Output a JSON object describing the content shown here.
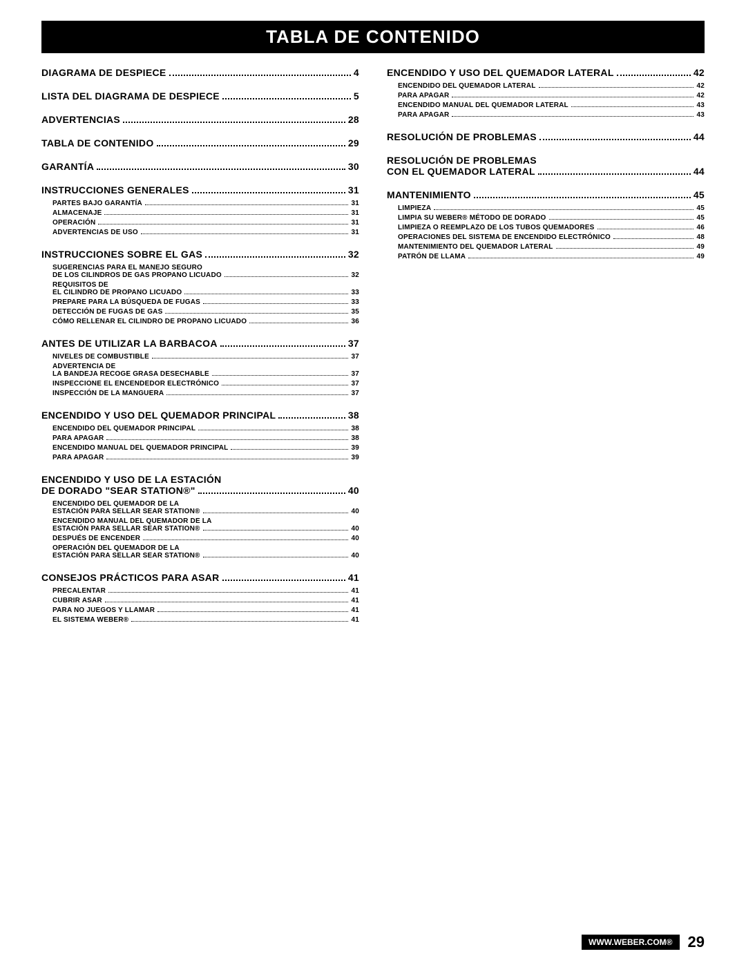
{
  "title": "TABLA DE CONTENIDO",
  "footer": {
    "url": "WWW.WEBER.COM®",
    "page": "29"
  },
  "leftColumn": [
    {
      "label": "DIAGRAMA DE DESPIECE",
      "page": "4",
      "subs": []
    },
    {
      "label": "LISTA DEL DIAGRAMA DE DESPIECE",
      "page": "5",
      "subs": []
    },
    {
      "label": "ADVERTENCIAS",
      "page": "28",
      "subs": []
    },
    {
      "label": "TABLA DE CONTENIDO",
      "page": "29",
      "subs": []
    },
    {
      "label": "GARANTÍA",
      "page": "30",
      "subs": []
    },
    {
      "label": "INSTRUCCIONES GENERALES",
      "page": "31",
      "subs": [
        {
          "label": "PARTES BAJO GARANTÍA",
          "page": "31"
        },
        {
          "label": "ALMACENAJE",
          "page": "31"
        },
        {
          "label": "OPERACIÓN",
          "page": "31"
        },
        {
          "label": "ADVERTENCIAS DE USO",
          "page": "31"
        }
      ]
    },
    {
      "label": "INSTRUCCIONES SOBRE EL GAS",
      "page": "32",
      "subs": [
        {
          "label": "SUGERENCIAS PARA EL MANEJO SEGURO",
          "cont": true
        },
        {
          "label": "DE LOS CILINDROS DE GAS PROPANO LICUADO",
          "page": "32"
        },
        {
          "label": "REQUISITOS DE",
          "cont": true
        },
        {
          "label": "EL CILINDRO DE PROPANO LICUADO",
          "page": "33"
        },
        {
          "label": "PREPARE PARA LA BÚSQUEDA DE FUGAS",
          "page": "33"
        },
        {
          "label": "DETECCIÓN DE FUGAS DE GAS",
          "page": "35"
        },
        {
          "label": "CÓMO RELLENAR EL CILINDRO DE PROPANO LICUADO",
          "page": "36"
        }
      ]
    },
    {
      "label": "ANTES DE UTILIZAR LA BARBACOA",
      "page": "37",
      "subs": [
        {
          "label": "NIVELES DE COMBUSTIBLE",
          "page": "37"
        },
        {
          "label": "ADVERTENCIA DE",
          "cont": true
        },
        {
          "label": "LA BANDEJA RECOGE GRASA DESECHABLE",
          "page": "37"
        },
        {
          "label": "INSPECCIONE EL ENCENDEDOR ELECTRÓNICO",
          "page": "37"
        },
        {
          "label": "INSPECCIÓN DE LA MANGUERA",
          "page": "37"
        }
      ]
    },
    {
      "label": "ENCENDIDO Y USO DEL QUEMADOR PRINCIPAL",
      "page": "38",
      "subs": [
        {
          "label": "ENCENDIDO DEL QUEMADOR PRINCIPAL",
          "page": "38"
        },
        {
          "label": "PARA APAGAR",
          "page": "38"
        },
        {
          "label": "ENCENDIDO MANUAL DEL QUEMADOR PRINCIPAL",
          "page": "39"
        },
        {
          "label": "PARA APAGAR",
          "page": "39"
        }
      ]
    },
    {
      "labelLines": [
        "ENCENDIDO Y USO DE LA ESTACIÓN",
        "DE DORADO \"SEAR STATION®\""
      ],
      "page": "40",
      "subs": [
        {
          "label": "ENCENDIDO DEL QUEMADOR DE LA",
          "cont": true
        },
        {
          "label": "ESTACIÓN PARA SELLAR SEAR STATION®",
          "page": "40"
        },
        {
          "label": "ENCENDIDO MANUAL DEL QUEMADOR DE LA",
          "cont": true
        },
        {
          "label": "ESTACIÓN PARA SELLAR SEAR STATION®",
          "page": "40"
        },
        {
          "label": "DESPUÉS DE ENCENDER",
          "page": "40"
        },
        {
          "label": "OPERACIÓN DEL QUEMADOR DE LA",
          "cont": true
        },
        {
          "label": "ESTACIÓN PARA SELLAR SEAR STATION®",
          "page": "40"
        }
      ]
    },
    {
      "label": "CONSEJOS PRÁCTICOS PARA ASAR",
      "page": "41",
      "subs": [
        {
          "label": "PRECALENTAR",
          "page": "41"
        },
        {
          "label": "CUBRIR ASAR",
          "page": "41"
        },
        {
          "label": "PARA NO JUEGOS Y LLAMAR",
          "page": "41"
        },
        {
          "label": "EL SISTEMA WEBER®",
          "page": "41"
        }
      ]
    }
  ],
  "rightColumn": [
    {
      "label": "ENCENDIDO Y USO DEL QUEMADOR LATERAL",
      "page": "42",
      "subs": [
        {
          "label": "ENCENDIDO DEL QUEMADOR LATERAL",
          "page": "42"
        },
        {
          "label": "PARA APAGAR",
          "page": "42"
        },
        {
          "label": "ENCENDIDO MANUAL DEL QUEMADOR LATERAL",
          "page": "43"
        },
        {
          "label": "PARA APAGAR",
          "page": "43"
        }
      ]
    },
    {
      "label": "RESOLUCIÓN DE PROBLEMAS",
      "page": "44",
      "subs": []
    },
    {
      "labelLines": [
        "RESOLUCIÓN DE PROBLEMAS",
        "CON EL QUEMADOR LATERAL"
      ],
      "page": "44",
      "subs": []
    },
    {
      "label": "MANTENIMIENTO",
      "page": "45",
      "subs": [
        {
          "label": "LIMPIEZA",
          "page": "45"
        },
        {
          "label": "LIMPIA SU WEBER® MÉTODO DE DORADO",
          "page": "45"
        },
        {
          "label": "LIMPIEZA O REEMPLAZO DE LOS TUBOS QUEMADORES",
          "page": "46"
        },
        {
          "label": "OPERACIONES DEL SISTEMA DE ENCENDIDO ELECTRÓNICO",
          "page": "48"
        },
        {
          "label": "MANTENIMIENTO DEL QUEMADOR LATERAL",
          "page": "49"
        },
        {
          "label": "PATRÓN DE LLAMA",
          "page": "49"
        }
      ]
    }
  ]
}
